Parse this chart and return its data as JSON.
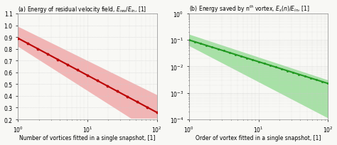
{
  "left_title": "(a) Energy of residual velocity field, $E_{res}/E_{in}$, [1]",
  "right_title": "(b) Energy saved by n$^{th}$ vortex, $E_s(n)/E_{in}$, [1]",
  "left_xlabel": "Number of vortices fitted in a single snapshot, [1]",
  "right_xlabel": "Order of vortex fitted in a single snapshot, [1]",
  "left_xlim": [
    1,
    100
  ],
  "left_ylim": [
    0.2,
    1.1
  ],
  "right_xlim": [
    1,
    100
  ],
  "right_ylim": [
    0.0001,
    1.0
  ],
  "line_color_left": "#bb0000",
  "fill_color_left": "#f0aaaa",
  "line_color_right": "#229922",
  "fill_color_right": "#99dd99",
  "bg_color": "#f8f8f5",
  "grid_color": "#cccccc",
  "dpi": 100,
  "figsize": [
    4.74,
    2.05
  ]
}
